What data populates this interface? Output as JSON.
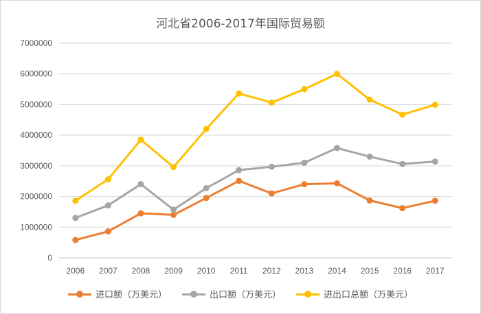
{
  "chart_data": {
    "type": "line",
    "title": "河北省2006-2017年国际贸易额",
    "categories": [
      "2006",
      "2007",
      "2008",
      "2009",
      "2010",
      "2011",
      "2012",
      "2013",
      "2014",
      "2015",
      "2016",
      "2017"
    ],
    "ylim": [
      0,
      7000000
    ],
    "yticks": [
      "0",
      "1000000",
      "2000000",
      "3000000",
      "4000000",
      "5000000",
      "6000000",
      "7000000"
    ],
    "grid": true,
    "legend_position": "bottom",
    "series": [
      {
        "name": "进口额（万美元）",
        "color": "#ed7d31",
        "values": [
          580000,
          860000,
          1450000,
          1400000,
          1950000,
          2510000,
          2100000,
          2400000,
          2430000,
          1870000,
          1620000,
          1860000
        ]
      },
      {
        "name": "出口额（万美元）",
        "color": "#a5a5a5",
        "values": [
          1300000,
          1710000,
          2400000,
          1570000,
          2270000,
          2860000,
          2970000,
          3100000,
          3580000,
          3300000,
          3060000,
          3140000
        ]
      },
      {
        "name": "进出口总额（万美元）",
        "color": "#ffc000",
        "values": [
          1860000,
          2560000,
          3850000,
          2960000,
          4200000,
          5360000,
          5060000,
          5500000,
          6000000,
          5160000,
          4670000,
          4990000
        ]
      }
    ]
  }
}
